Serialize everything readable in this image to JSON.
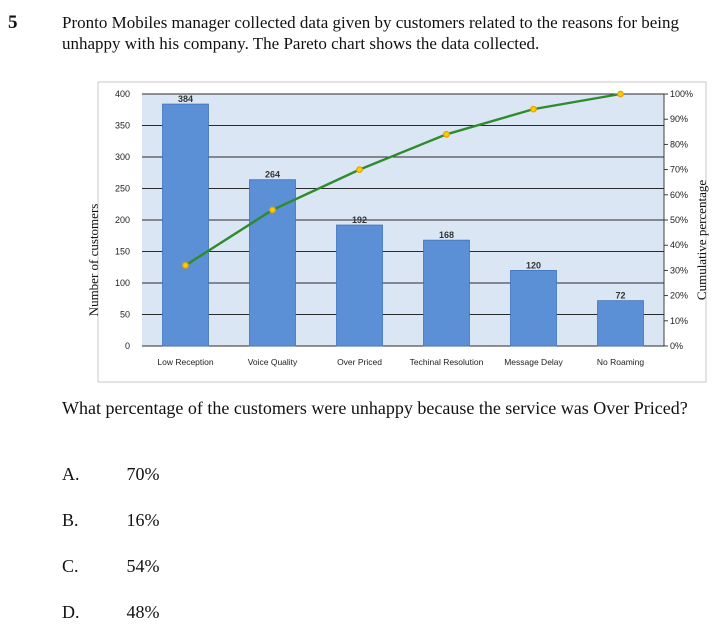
{
  "question": {
    "number": "5",
    "stem": "Pronto Mobiles manager collected data given by customers related to the reasons for being unhappy with his company. The Pareto chart shows the data collected.",
    "prompt": "What percentage of the customers were unhappy because the service was Over Priced?",
    "options": [
      {
        "letter": "A.",
        "text": "70%"
      },
      {
        "letter": "B.",
        "text": "16%"
      },
      {
        "letter": "C.",
        "text": "54%"
      },
      {
        "letter": "D.",
        "text": "48%"
      }
    ]
  },
  "chart_data": {
    "type": "bar",
    "title": "",
    "categories": [
      "Low Reception",
      "Voice Quality",
      "Over Priced",
      "Techinal Resolution",
      "Message Delay",
      "No Roaming"
    ],
    "values": [
      384,
      264,
      192,
      168,
      120,
      72
    ],
    "data_labels": [
      "384",
      "264",
      "192",
      "168",
      "120",
      "72"
    ],
    "ylabel": "Number of customers",
    "ylim": [
      0,
      400
    ],
    "yticks": [
      "0",
      "50",
      "100",
      "150",
      "200",
      "250",
      "300",
      "350",
      "400"
    ],
    "y2label": "Cumulative percentage",
    "y2lim": [
      0,
      100
    ],
    "y2ticks": [
      "0%",
      "10%",
      "20%",
      "30%",
      "40%",
      "50%",
      "60%",
      "70%",
      "80%",
      "90%",
      "100%"
    ],
    "cumulative": [
      32,
      54,
      70,
      84,
      94,
      100
    ],
    "grid": true,
    "colors": {
      "bar": "#5b8fd6",
      "line": "#2e8b2e",
      "marker": "#e8a010",
      "plot_bg": "#dbe6f4"
    }
  }
}
